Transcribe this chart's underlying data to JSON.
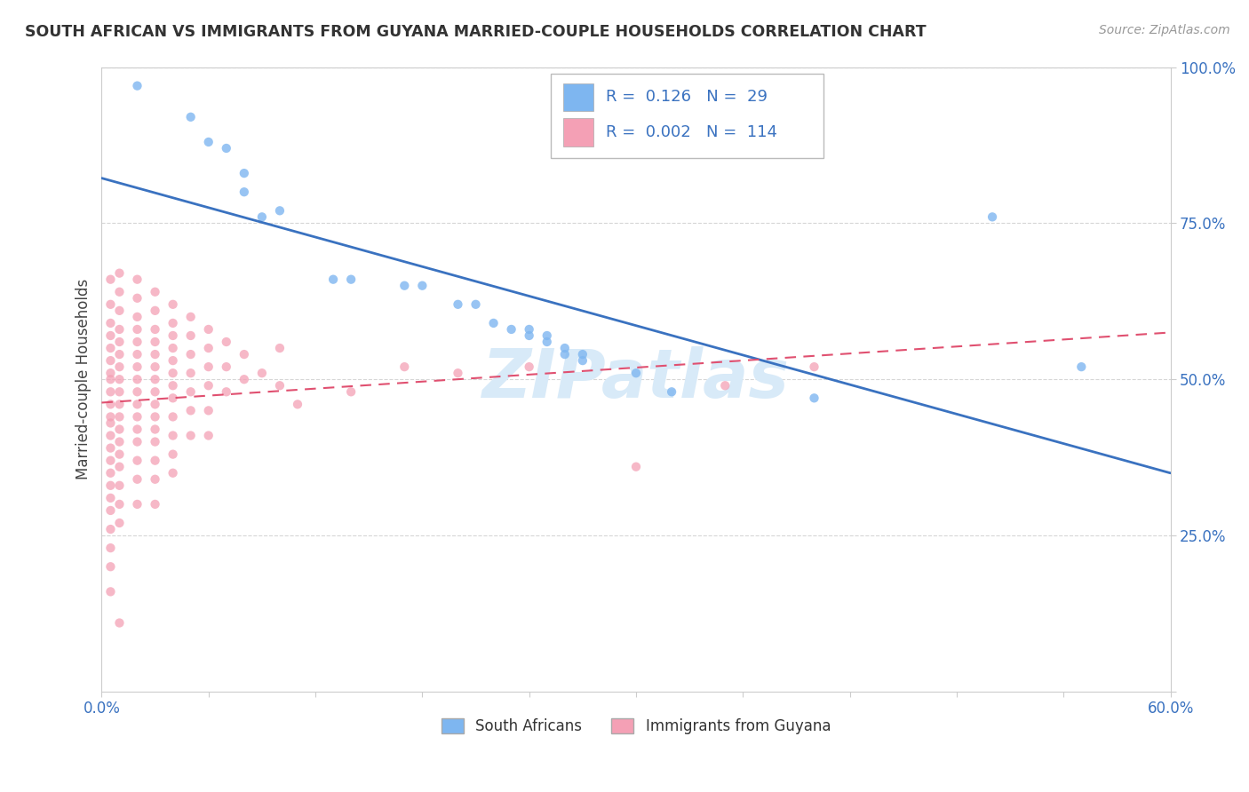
{
  "title": "SOUTH AFRICAN VS IMMIGRANTS FROM GUYANA MARRIED-COUPLE HOUSEHOLDS CORRELATION CHART",
  "source": "Source: ZipAtlas.com",
  "ylabel": "Married-couple Households",
  "xlim": [
    0.0,
    0.6
  ],
  "ylim": [
    0.0,
    1.0
  ],
  "yticks": [
    0.0,
    0.25,
    0.5,
    0.75,
    1.0
  ],
  "ytick_labels": [
    "",
    "25.0%",
    "50.0%",
    "75.0%",
    "100.0%"
  ],
  "xtick_labels": [
    "0.0%",
    "",
    "",
    "",
    "",
    "",
    "",
    "",
    "",
    "",
    "60.0%"
  ],
  "blue_R": "0.126",
  "blue_N": "29",
  "pink_R": "0.002",
  "pink_N": "114",
  "blue_color": "#7EB6F0",
  "pink_color": "#F4A0B5",
  "line_blue": "#3A72C0",
  "line_pink": "#E05070",
  "watermark_color": "#D8EAF8",
  "blue_points": [
    [
      0.02,
      0.97
    ],
    [
      0.05,
      0.92
    ],
    [
      0.06,
      0.88
    ],
    [
      0.07,
      0.87
    ],
    [
      0.08,
      0.8
    ],
    [
      0.08,
      0.83
    ],
    [
      0.09,
      0.76
    ],
    [
      0.1,
      0.77
    ],
    [
      0.13,
      0.66
    ],
    [
      0.14,
      0.66
    ],
    [
      0.17,
      0.65
    ],
    [
      0.18,
      0.65
    ],
    [
      0.2,
      0.62
    ],
    [
      0.21,
      0.62
    ],
    [
      0.22,
      0.59
    ],
    [
      0.23,
      0.58
    ],
    [
      0.24,
      0.58
    ],
    [
      0.24,
      0.57
    ],
    [
      0.25,
      0.57
    ],
    [
      0.25,
      0.56
    ],
    [
      0.26,
      0.55
    ],
    [
      0.26,
      0.54
    ],
    [
      0.27,
      0.54
    ],
    [
      0.27,
      0.53
    ],
    [
      0.3,
      0.51
    ],
    [
      0.32,
      0.48
    ],
    [
      0.4,
      0.47
    ],
    [
      0.5,
      0.76
    ],
    [
      0.55,
      0.52
    ]
  ],
  "pink_points": [
    [
      0.005,
      0.66
    ],
    [
      0.005,
      0.62
    ],
    [
      0.005,
      0.59
    ],
    [
      0.005,
      0.57
    ],
    [
      0.005,
      0.55
    ],
    [
      0.005,
      0.53
    ],
    [
      0.005,
      0.51
    ],
    [
      0.005,
      0.5
    ],
    [
      0.005,
      0.48
    ],
    [
      0.005,
      0.46
    ],
    [
      0.005,
      0.44
    ],
    [
      0.005,
      0.43
    ],
    [
      0.005,
      0.41
    ],
    [
      0.005,
      0.39
    ],
    [
      0.005,
      0.37
    ],
    [
      0.005,
      0.35
    ],
    [
      0.005,
      0.33
    ],
    [
      0.005,
      0.31
    ],
    [
      0.005,
      0.29
    ],
    [
      0.005,
      0.26
    ],
    [
      0.005,
      0.23
    ],
    [
      0.005,
      0.2
    ],
    [
      0.005,
      0.16
    ],
    [
      0.01,
      0.67
    ],
    [
      0.01,
      0.64
    ],
    [
      0.01,
      0.61
    ],
    [
      0.01,
      0.58
    ],
    [
      0.01,
      0.56
    ],
    [
      0.01,
      0.54
    ],
    [
      0.01,
      0.52
    ],
    [
      0.01,
      0.5
    ],
    [
      0.01,
      0.48
    ],
    [
      0.01,
      0.46
    ],
    [
      0.01,
      0.44
    ],
    [
      0.01,
      0.42
    ],
    [
      0.01,
      0.4
    ],
    [
      0.01,
      0.38
    ],
    [
      0.01,
      0.36
    ],
    [
      0.01,
      0.33
    ],
    [
      0.01,
      0.3
    ],
    [
      0.01,
      0.27
    ],
    [
      0.01,
      0.11
    ],
    [
      0.02,
      0.66
    ],
    [
      0.02,
      0.63
    ],
    [
      0.02,
      0.6
    ],
    [
      0.02,
      0.58
    ],
    [
      0.02,
      0.56
    ],
    [
      0.02,
      0.54
    ],
    [
      0.02,
      0.52
    ],
    [
      0.02,
      0.5
    ],
    [
      0.02,
      0.48
    ],
    [
      0.02,
      0.46
    ],
    [
      0.02,
      0.44
    ],
    [
      0.02,
      0.42
    ],
    [
      0.02,
      0.4
    ],
    [
      0.02,
      0.37
    ],
    [
      0.02,
      0.34
    ],
    [
      0.02,
      0.3
    ],
    [
      0.03,
      0.64
    ],
    [
      0.03,
      0.61
    ],
    [
      0.03,
      0.58
    ],
    [
      0.03,
      0.56
    ],
    [
      0.03,
      0.54
    ],
    [
      0.03,
      0.52
    ],
    [
      0.03,
      0.5
    ],
    [
      0.03,
      0.48
    ],
    [
      0.03,
      0.46
    ],
    [
      0.03,
      0.44
    ],
    [
      0.03,
      0.42
    ],
    [
      0.03,
      0.4
    ],
    [
      0.03,
      0.37
    ],
    [
      0.03,
      0.34
    ],
    [
      0.03,
      0.3
    ],
    [
      0.04,
      0.62
    ],
    [
      0.04,
      0.59
    ],
    [
      0.04,
      0.57
    ],
    [
      0.04,
      0.55
    ],
    [
      0.04,
      0.53
    ],
    [
      0.04,
      0.51
    ],
    [
      0.04,
      0.49
    ],
    [
      0.04,
      0.47
    ],
    [
      0.04,
      0.44
    ],
    [
      0.04,
      0.41
    ],
    [
      0.04,
      0.38
    ],
    [
      0.04,
      0.35
    ],
    [
      0.05,
      0.6
    ],
    [
      0.05,
      0.57
    ],
    [
      0.05,
      0.54
    ],
    [
      0.05,
      0.51
    ],
    [
      0.05,
      0.48
    ],
    [
      0.05,
      0.45
    ],
    [
      0.05,
      0.41
    ],
    [
      0.06,
      0.58
    ],
    [
      0.06,
      0.55
    ],
    [
      0.06,
      0.52
    ],
    [
      0.06,
      0.49
    ],
    [
      0.06,
      0.45
    ],
    [
      0.06,
      0.41
    ],
    [
      0.07,
      0.56
    ],
    [
      0.07,
      0.52
    ],
    [
      0.07,
      0.48
    ],
    [
      0.08,
      0.54
    ],
    [
      0.08,
      0.5
    ],
    [
      0.09,
      0.51
    ],
    [
      0.1,
      0.55
    ],
    [
      0.1,
      0.49
    ],
    [
      0.11,
      0.46
    ],
    [
      0.14,
      0.48
    ],
    [
      0.17,
      0.52
    ],
    [
      0.2,
      0.51
    ],
    [
      0.24,
      0.52
    ],
    [
      0.3,
      0.36
    ],
    [
      0.35,
      0.49
    ],
    [
      0.4,
      0.52
    ]
  ],
  "background_color": "#FFFFFF",
  "grid_color": "#CCCCCC",
  "tick_color": "#3A72C0",
  "title_color": "#333333"
}
